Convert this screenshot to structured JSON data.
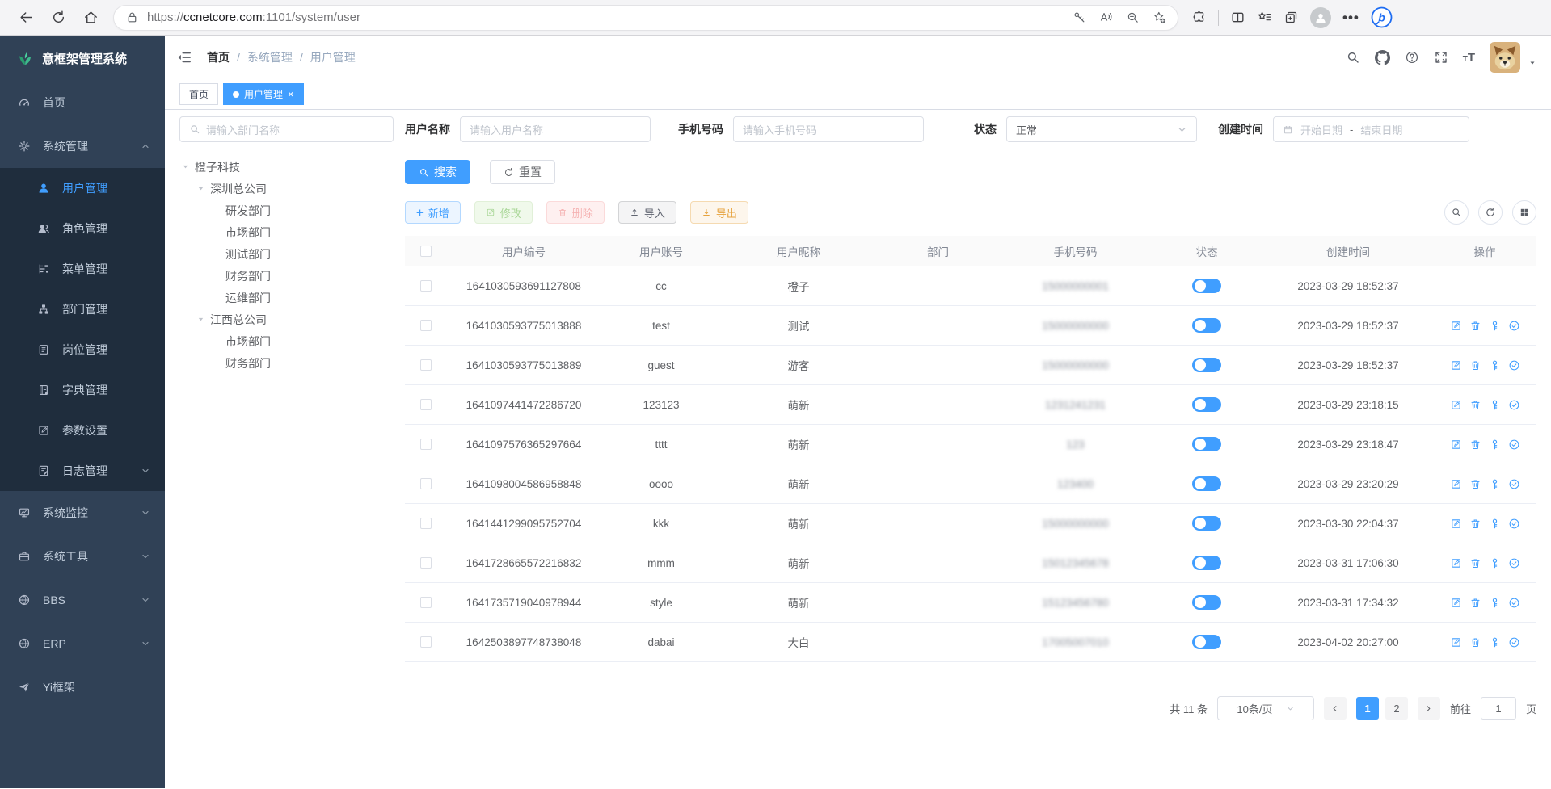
{
  "colors": {
    "accent": "#409eff",
    "sidebar_bg": "#304156",
    "submenu_bg": "#1f2d3d",
    "success": "#67c23a",
    "danger": "#f56c6c",
    "warning": "#e6a23c"
  },
  "browser": {
    "url_scheme": "https://",
    "url_host": "ccnetcore.com",
    "url_rest": ":1101/system/user"
  },
  "app": {
    "logo_title": "意框架管理系统",
    "sidebar": {
      "items": [
        {
          "key": "home",
          "label": "首页",
          "icon": "dashboard-icon"
        },
        {
          "key": "system",
          "label": "系统管理",
          "icon": "gear-icon",
          "expanded": true,
          "children": [
            {
              "key": "user",
              "label": "用户管理",
              "icon": "user-icon",
              "active": true
            },
            {
              "key": "role",
              "label": "角色管理",
              "icon": "roles-icon"
            },
            {
              "key": "menu",
              "label": "菜单管理",
              "icon": "menu-icon"
            },
            {
              "key": "dept",
              "label": "部门管理",
              "icon": "dept-icon"
            },
            {
              "key": "post",
              "label": "岗位管理",
              "icon": "post-icon"
            },
            {
              "key": "dict",
              "label": "字典管理",
              "icon": "dict-icon"
            },
            {
              "key": "params",
              "label": "参数设置",
              "icon": "params-icon"
            },
            {
              "key": "log",
              "label": "日志管理",
              "icon": "log-icon",
              "chevron": true
            }
          ]
        },
        {
          "key": "monitor",
          "label": "系统监控",
          "icon": "monitor-icon",
          "chevron": true
        },
        {
          "key": "tools",
          "label": "系统工具",
          "icon": "tools-icon",
          "chevron": true
        },
        {
          "key": "bbs",
          "label": "BBS",
          "icon": "globe-icon",
          "chevron": true
        },
        {
          "key": "erp",
          "label": "ERP",
          "icon": "globe-icon",
          "chevron": true
        },
        {
          "key": "yi",
          "label": "Yi框架",
          "icon": "plane-icon"
        }
      ]
    },
    "header": {
      "breadcrumb": [
        "首页",
        "系统管理",
        "用户管理"
      ]
    },
    "tabs": [
      {
        "label": "首页",
        "active": false
      },
      {
        "label": "用户管理",
        "active": true
      }
    ],
    "tree": {
      "filter_placeholder": "请输入部门名称",
      "nodes": [
        {
          "label": "橙子科技",
          "level": 0,
          "caret": true
        },
        {
          "label": "深圳总公司",
          "level": 1,
          "caret": true
        },
        {
          "label": "研发部门",
          "level": 2
        },
        {
          "label": "市场部门",
          "level": 2
        },
        {
          "label": "测试部门",
          "level": 2
        },
        {
          "label": "财务部门",
          "level": 2
        },
        {
          "label": "运维部门",
          "level": 2
        },
        {
          "label": "江西总公司",
          "level": 1,
          "caret": true
        },
        {
          "label": "市场部门",
          "level": 2
        },
        {
          "label": "财务部门",
          "level": 2
        }
      ]
    },
    "filters": {
      "username_label": "用户名称",
      "username_placeholder": "请输入用户名称",
      "phone_label": "手机号码",
      "phone_placeholder": "请输入手机号码",
      "status_label": "状态",
      "status_value": "正常",
      "created_label": "创建时间",
      "date_start": "开始日期",
      "date_sep": "-",
      "date_end": "结束日期"
    },
    "buttons": {
      "search": "搜索",
      "reset": "重置",
      "add": "新增",
      "modify": "修改",
      "delete": "删除",
      "import": "导入",
      "export": "导出"
    },
    "table": {
      "columns": [
        "用户编号",
        "用户账号",
        "用户昵称",
        "部门",
        "手机号码",
        "状态",
        "创建时间",
        "操作"
      ],
      "rows": [
        {
          "id": "1641030593691127808",
          "account": "cc",
          "nickname": "橙子",
          "dept": "",
          "phone": "15000000001",
          "status": true,
          "created": "2023-03-29 18:52:37",
          "actions": false
        },
        {
          "id": "1641030593775013888",
          "account": "test",
          "nickname": "测试",
          "dept": "",
          "phone": "15000000000",
          "status": true,
          "created": "2023-03-29 18:52:37",
          "actions": true
        },
        {
          "id": "1641030593775013889",
          "account": "guest",
          "nickname": "游客",
          "dept": "",
          "phone": "15000000000",
          "status": true,
          "created": "2023-03-29 18:52:37",
          "actions": true
        },
        {
          "id": "1641097441472286720",
          "account": "123123",
          "nickname": "萌新",
          "dept": "",
          "phone": "1231241231",
          "status": true,
          "created": "2023-03-29 23:18:15",
          "actions": true
        },
        {
          "id": "1641097576365297664",
          "account": "tttt",
          "nickname": "萌新",
          "dept": "",
          "phone": "123",
          "status": true,
          "created": "2023-03-29 23:18:47",
          "actions": true
        },
        {
          "id": "1641098004586958848",
          "account": "oooo",
          "nickname": "萌新",
          "dept": "",
          "phone": "123400",
          "status": true,
          "created": "2023-03-29 23:20:29",
          "actions": true
        },
        {
          "id": "1641441299095752704",
          "account": "kkk",
          "nickname": "萌新",
          "dept": "",
          "phone": "15000000000",
          "status": true,
          "created": "2023-03-30 22:04:37",
          "actions": true
        },
        {
          "id": "1641728665572216832",
          "account": "mmm",
          "nickname": "萌新",
          "dept": "",
          "phone": "15012345678",
          "status": true,
          "created": "2023-03-31 17:06:30",
          "actions": true
        },
        {
          "id": "1641735719040978944",
          "account": "style",
          "nickname": "萌新",
          "dept": "",
          "phone": "15123456780",
          "status": true,
          "created": "2023-03-31 17:34:32",
          "actions": true
        },
        {
          "id": "1642503897748738048",
          "account": "dabai",
          "nickname": "大白",
          "dept": "",
          "phone": "17005007010",
          "status": true,
          "created": "2023-04-02 20:27:00",
          "actions": true
        }
      ]
    },
    "pagination": {
      "total_text": "共 11 条",
      "page_size": "10条/页",
      "pages": [
        {
          "label": "1",
          "active": true
        },
        {
          "label": "2",
          "active": false
        }
      ],
      "goto_label": "前往",
      "goto_value": "1",
      "unit_label": "页"
    }
  }
}
